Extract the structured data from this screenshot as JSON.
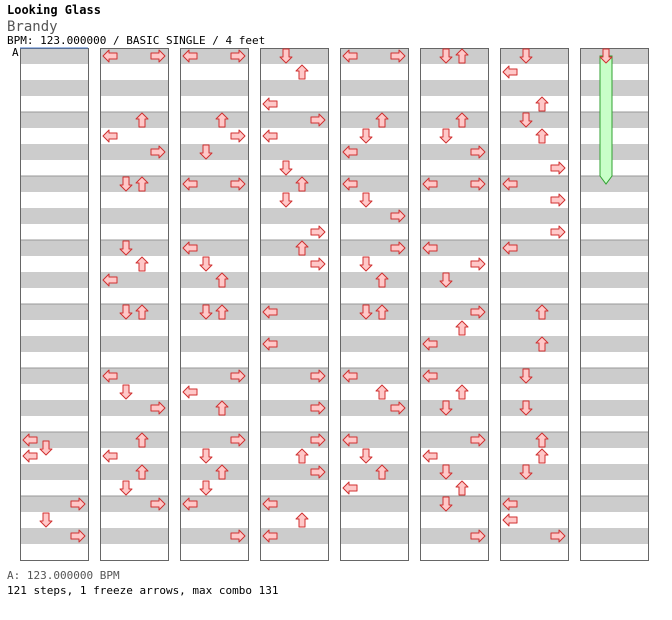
{
  "song": {
    "title": "Looking Glass",
    "artist": "Brandy",
    "info": "BPM: 123.000000 / BASIC SINGLE / 4 feet"
  },
  "bpm_marker": "A",
  "legend": "A: 123.000000 BPM",
  "stats": "121 steps, 1 freeze arrows, max combo 131",
  "colors": {
    "band": "#cccccc",
    "arrow_fill": "#ffc8c8",
    "arrow_stroke": "#d03030",
    "freeze_fill": "#c8ffc8",
    "freeze_stroke": "#30a030",
    "column_border": "#666666",
    "bpm_line": "#4a7ac8"
  },
  "chart": {
    "columns": 8,
    "measures_per_column": 8,
    "rows_per_measure": 16,
    "lanes": [
      "left",
      "down",
      "up",
      "right"
    ],
    "notes": [
      {
        "col": 0,
        "measure": 6,
        "row": 0,
        "lane": "left"
      },
      {
        "col": 0,
        "measure": 6,
        "row": 2,
        "lane": "down"
      },
      {
        "col": 0,
        "measure": 6,
        "row": 4,
        "lane": "left"
      },
      {
        "col": 0,
        "measure": 7,
        "row": 0,
        "lane": "right"
      },
      {
        "col": 0,
        "measure": 7,
        "row": 4,
        "lane": "down"
      },
      {
        "col": 0,
        "measure": 7,
        "row": 8,
        "lane": "right"
      },
      {
        "col": 1,
        "measure": 0,
        "row": 0,
        "lane": "left"
      },
      {
        "col": 1,
        "measure": 0,
        "row": 0,
        "lane": "right"
      },
      {
        "col": 1,
        "measure": 1,
        "row": 0,
        "lane": "up"
      },
      {
        "col": 1,
        "measure": 1,
        "row": 4,
        "lane": "left"
      },
      {
        "col": 1,
        "measure": 1,
        "row": 8,
        "lane": "right"
      },
      {
        "col": 1,
        "measure": 2,
        "row": 0,
        "lane": "down"
      },
      {
        "col": 1,
        "measure": 2,
        "row": 0,
        "lane": "up"
      },
      {
        "col": 1,
        "measure": 3,
        "row": 0,
        "lane": "down"
      },
      {
        "col": 1,
        "measure": 3,
        "row": 4,
        "lane": "up"
      },
      {
        "col": 1,
        "measure": 3,
        "row": 8,
        "lane": "left"
      },
      {
        "col": 1,
        "measure": 4,
        "row": 0,
        "lane": "down"
      },
      {
        "col": 1,
        "measure": 4,
        "row": 0,
        "lane": "up"
      },
      {
        "col": 1,
        "measure": 5,
        "row": 0,
        "lane": "left"
      },
      {
        "col": 1,
        "measure": 5,
        "row": 4,
        "lane": "down"
      },
      {
        "col": 1,
        "measure": 5,
        "row": 8,
        "lane": "right"
      },
      {
        "col": 1,
        "measure": 6,
        "row": 0,
        "lane": "up"
      },
      {
        "col": 1,
        "measure": 6,
        "row": 4,
        "lane": "left"
      },
      {
        "col": 1,
        "measure": 6,
        "row": 8,
        "lane": "up"
      },
      {
        "col": 1,
        "measure": 6,
        "row": 12,
        "lane": "down"
      },
      {
        "col": 1,
        "measure": 7,
        "row": 0,
        "lane": "right"
      },
      {
        "col": 2,
        "measure": 0,
        "row": 0,
        "lane": "left"
      },
      {
        "col": 2,
        "measure": 0,
        "row": 0,
        "lane": "right"
      },
      {
        "col": 2,
        "measure": 1,
        "row": 0,
        "lane": "up"
      },
      {
        "col": 2,
        "measure": 1,
        "row": 4,
        "lane": "right"
      },
      {
        "col": 2,
        "measure": 1,
        "row": 8,
        "lane": "down"
      },
      {
        "col": 2,
        "measure": 2,
        "row": 0,
        "lane": "left"
      },
      {
        "col": 2,
        "measure": 2,
        "row": 0,
        "lane": "right"
      },
      {
        "col": 2,
        "measure": 3,
        "row": 0,
        "lane": "left"
      },
      {
        "col": 2,
        "measure": 3,
        "row": 4,
        "lane": "down"
      },
      {
        "col": 2,
        "measure": 3,
        "row": 8,
        "lane": "up"
      },
      {
        "col": 2,
        "measure": 4,
        "row": 0,
        "lane": "down"
      },
      {
        "col": 2,
        "measure": 4,
        "row": 0,
        "lane": "up"
      },
      {
        "col": 2,
        "measure": 5,
        "row": 0,
        "lane": "right"
      },
      {
        "col": 2,
        "measure": 5,
        "row": 4,
        "lane": "left"
      },
      {
        "col": 2,
        "measure": 5,
        "row": 8,
        "lane": "up"
      },
      {
        "col": 2,
        "measure": 6,
        "row": 0,
        "lane": "right"
      },
      {
        "col": 2,
        "measure": 6,
        "row": 4,
        "lane": "down"
      },
      {
        "col": 2,
        "measure": 6,
        "row": 8,
        "lane": "up"
      },
      {
        "col": 2,
        "measure": 6,
        "row": 12,
        "lane": "down"
      },
      {
        "col": 2,
        "measure": 7,
        "row": 0,
        "lane": "left"
      },
      {
        "col": 2,
        "measure": 7,
        "row": 8,
        "lane": "right"
      },
      {
        "col": 3,
        "measure": 0,
        "row": 0,
        "lane": "down"
      },
      {
        "col": 3,
        "measure": 0,
        "row": 4,
        "lane": "up"
      },
      {
        "col": 3,
        "measure": 0,
        "row": 12,
        "lane": "left"
      },
      {
        "col": 3,
        "measure": 1,
        "row": 0,
        "lane": "right"
      },
      {
        "col": 3,
        "measure": 1,
        "row": 4,
        "lane": "left"
      },
      {
        "col": 3,
        "measure": 1,
        "row": 12,
        "lane": "down"
      },
      {
        "col": 3,
        "measure": 2,
        "row": 0,
        "lane": "up"
      },
      {
        "col": 3,
        "measure": 2,
        "row": 4,
        "lane": "down"
      },
      {
        "col": 3,
        "measure": 2,
        "row": 12,
        "lane": "right"
      },
      {
        "col": 3,
        "measure": 3,
        "row": 0,
        "lane": "up"
      },
      {
        "col": 3,
        "measure": 3,
        "row": 4,
        "lane": "right"
      },
      {
        "col": 3,
        "measure": 4,
        "row": 0,
        "lane": "left"
      },
      {
        "col": 3,
        "measure": 4,
        "row": 8,
        "lane": "left"
      },
      {
        "col": 3,
        "measure": 5,
        "row": 0,
        "lane": "right"
      },
      {
        "col": 3,
        "measure": 5,
        "row": 8,
        "lane": "right"
      },
      {
        "col": 3,
        "measure": 6,
        "row": 0,
        "lane": "right"
      },
      {
        "col": 3,
        "measure": 6,
        "row": 4,
        "lane": "up"
      },
      {
        "col": 3,
        "measure": 6,
        "row": 8,
        "lane": "right"
      },
      {
        "col": 3,
        "measure": 7,
        "row": 0,
        "lane": "left"
      },
      {
        "col": 3,
        "measure": 7,
        "row": 4,
        "lane": "up"
      },
      {
        "col": 3,
        "measure": 7,
        "row": 8,
        "lane": "left"
      },
      {
        "col": 4,
        "measure": 0,
        "row": 0,
        "lane": "left"
      },
      {
        "col": 4,
        "measure": 0,
        "row": 0,
        "lane": "right"
      },
      {
        "col": 4,
        "measure": 1,
        "row": 0,
        "lane": "up"
      },
      {
        "col": 4,
        "measure": 1,
        "row": 4,
        "lane": "down"
      },
      {
        "col": 4,
        "measure": 1,
        "row": 8,
        "lane": "left"
      },
      {
        "col": 4,
        "measure": 2,
        "row": 0,
        "lane": "left"
      },
      {
        "col": 4,
        "measure": 2,
        "row": 4,
        "lane": "down"
      },
      {
        "col": 4,
        "measure": 2,
        "row": 8,
        "lane": "right"
      },
      {
        "col": 4,
        "measure": 3,
        "row": 0,
        "lane": "right"
      },
      {
        "col": 4,
        "measure": 3,
        "row": 4,
        "lane": "down"
      },
      {
        "col": 4,
        "measure": 3,
        "row": 8,
        "lane": "up"
      },
      {
        "col": 4,
        "measure": 4,
        "row": 0,
        "lane": "down"
      },
      {
        "col": 4,
        "measure": 4,
        "row": 0,
        "lane": "up"
      },
      {
        "col": 4,
        "measure": 5,
        "row": 0,
        "lane": "left"
      },
      {
        "col": 4,
        "measure": 5,
        "row": 4,
        "lane": "up"
      },
      {
        "col": 4,
        "measure": 5,
        "row": 8,
        "lane": "right"
      },
      {
        "col": 4,
        "measure": 6,
        "row": 0,
        "lane": "left"
      },
      {
        "col": 4,
        "measure": 6,
        "row": 4,
        "lane": "down"
      },
      {
        "col": 4,
        "measure": 6,
        "row": 8,
        "lane": "up"
      },
      {
        "col": 4,
        "measure": 6,
        "row": 12,
        "lane": "left"
      },
      {
        "col": 5,
        "measure": 0,
        "row": 0,
        "lane": "down"
      },
      {
        "col": 5,
        "measure": 0,
        "row": 0,
        "lane": "up"
      },
      {
        "col": 5,
        "measure": 1,
        "row": 0,
        "lane": "up"
      },
      {
        "col": 5,
        "measure": 1,
        "row": 4,
        "lane": "down"
      },
      {
        "col": 5,
        "measure": 1,
        "row": 8,
        "lane": "right"
      },
      {
        "col": 5,
        "measure": 2,
        "row": 0,
        "lane": "left"
      },
      {
        "col": 5,
        "measure": 2,
        "row": 0,
        "lane": "right"
      },
      {
        "col": 5,
        "measure": 3,
        "row": 0,
        "lane": "left"
      },
      {
        "col": 5,
        "measure": 3,
        "row": 4,
        "lane": "right"
      },
      {
        "col": 5,
        "measure": 3,
        "row": 8,
        "lane": "down"
      },
      {
        "col": 5,
        "measure": 4,
        "row": 0,
        "lane": "right"
      },
      {
        "col": 5,
        "measure": 4,
        "row": 4,
        "lane": "up"
      },
      {
        "col": 5,
        "measure": 4,
        "row": 8,
        "lane": "left"
      },
      {
        "col": 5,
        "measure": 5,
        "row": 0,
        "lane": "left"
      },
      {
        "col": 5,
        "measure": 5,
        "row": 4,
        "lane": "up"
      },
      {
        "col": 5,
        "measure": 5,
        "row": 8,
        "lane": "down"
      },
      {
        "col": 5,
        "measure": 6,
        "row": 0,
        "lane": "right"
      },
      {
        "col": 5,
        "measure": 6,
        "row": 4,
        "lane": "left"
      },
      {
        "col": 5,
        "measure": 6,
        "row": 8,
        "lane": "down"
      },
      {
        "col": 5,
        "measure": 6,
        "row": 12,
        "lane": "up"
      },
      {
        "col": 5,
        "measure": 7,
        "row": 0,
        "lane": "down"
      },
      {
        "col": 5,
        "measure": 7,
        "row": 8,
        "lane": "right"
      },
      {
        "col": 6,
        "measure": 0,
        "row": 0,
        "lane": "down"
      },
      {
        "col": 6,
        "measure": 0,
        "row": 4,
        "lane": "left"
      },
      {
        "col": 6,
        "measure": 0,
        "row": 12,
        "lane": "up"
      },
      {
        "col": 6,
        "measure": 1,
        "row": 0,
        "lane": "down"
      },
      {
        "col": 6,
        "measure": 1,
        "row": 4,
        "lane": "up"
      },
      {
        "col": 6,
        "measure": 1,
        "row": 12,
        "lane": "right"
      },
      {
        "col": 6,
        "measure": 2,
        "row": 0,
        "lane": "left"
      },
      {
        "col": 6,
        "measure": 2,
        "row": 4,
        "lane": "right"
      },
      {
        "col": 6,
        "measure": 2,
        "row": 12,
        "lane": "right"
      },
      {
        "col": 6,
        "measure": 3,
        "row": 0,
        "lane": "left"
      },
      {
        "col": 6,
        "measure": 4,
        "row": 0,
        "lane": "up"
      },
      {
        "col": 6,
        "measure": 4,
        "row": 8,
        "lane": "up"
      },
      {
        "col": 6,
        "measure": 5,
        "row": 0,
        "lane": "down"
      },
      {
        "col": 6,
        "measure": 5,
        "row": 8,
        "lane": "down"
      },
      {
        "col": 6,
        "measure": 6,
        "row": 0,
        "lane": "up"
      },
      {
        "col": 6,
        "measure": 6,
        "row": 4,
        "lane": "up"
      },
      {
        "col": 6,
        "measure": 6,
        "row": 8,
        "lane": "down"
      },
      {
        "col": 6,
        "measure": 7,
        "row": 0,
        "lane": "left"
      },
      {
        "col": 6,
        "measure": 7,
        "row": 4,
        "lane": "left"
      },
      {
        "col": 6,
        "measure": 7,
        "row": 8,
        "lane": "right"
      }
    ],
    "freezes": [
      {
        "col": 7,
        "measure": 0,
        "row": 0,
        "length_rows": 32,
        "lane": "down"
      }
    ]
  }
}
